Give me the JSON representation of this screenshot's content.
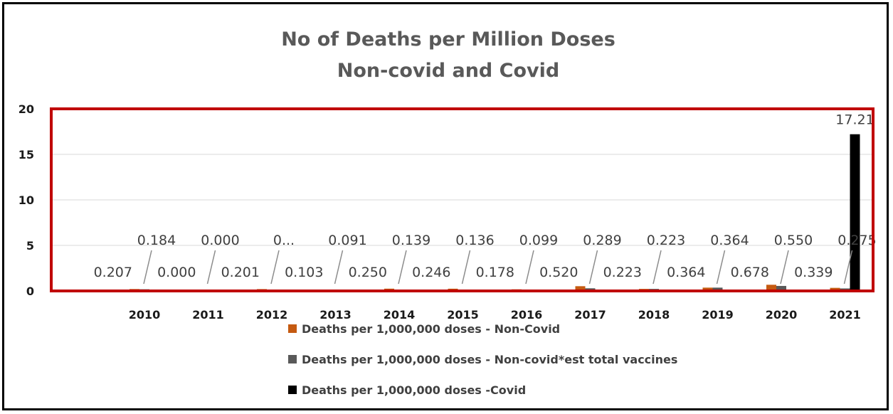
{
  "chart_data": {
    "type": "bar",
    "title": "No of Deaths per Million Doses",
    "subtitle": "Non-covid and Covid",
    "categories": [
      "2010",
      "2011",
      "2012",
      "2013",
      "2014",
      "2015",
      "2016",
      "2017",
      "2018",
      "2019",
      "2020",
      "2021"
    ],
    "yticks": [
      "0",
      "5",
      "10",
      "15",
      "20"
    ],
    "ylim": [
      0,
      20
    ],
    "grid": true,
    "legend_position": "bottom",
    "series": [
      {
        "name": "Deaths per 1,000,000 doses - Non-Covid",
        "color": "#c55a11",
        "values": [
          0.207,
          0.0,
          0.201,
          0.103,
          0.25,
          0.246,
          0.178,
          0.52,
          0.223,
          0.364,
          0.678,
          0.339
        ],
        "labels": [
          "0.207",
          "0.000",
          "0.201",
          "0.103",
          "0.250",
          "0.246",
          "0.178",
          "0.520",
          "0.223",
          "0.364",
          "0.678",
          "0.339"
        ]
      },
      {
        "name": "Deaths per 1,000,000 doses - Non-covid*est total vaccines",
        "color": "#595959",
        "values": [
          0.184,
          0.0,
          null,
          0.091,
          0.139,
          0.136,
          0.099,
          0.289,
          0.223,
          0.364,
          0.55,
          0.275
        ],
        "labels": [
          "0.184",
          "0.000",
          "0...",
          "0.091",
          "0.139",
          "0.136",
          "0.099",
          "0.289",
          "0.223",
          "0.364",
          "0.550",
          "0.275"
        ]
      },
      {
        "name": "Deaths per 1,000,000 doses -Covid",
        "color": "#000000",
        "values": [
          null,
          null,
          null,
          null,
          null,
          null,
          null,
          null,
          null,
          null,
          null,
          17.21
        ],
        "labels": [
          "",
          "",
          "",
          "",
          "",
          "",
          "",
          "",
          "",
          "",
          "",
          "17.21"
        ]
      }
    ],
    "annotations": {
      "highlight_box_color": "#c00000"
    }
  }
}
